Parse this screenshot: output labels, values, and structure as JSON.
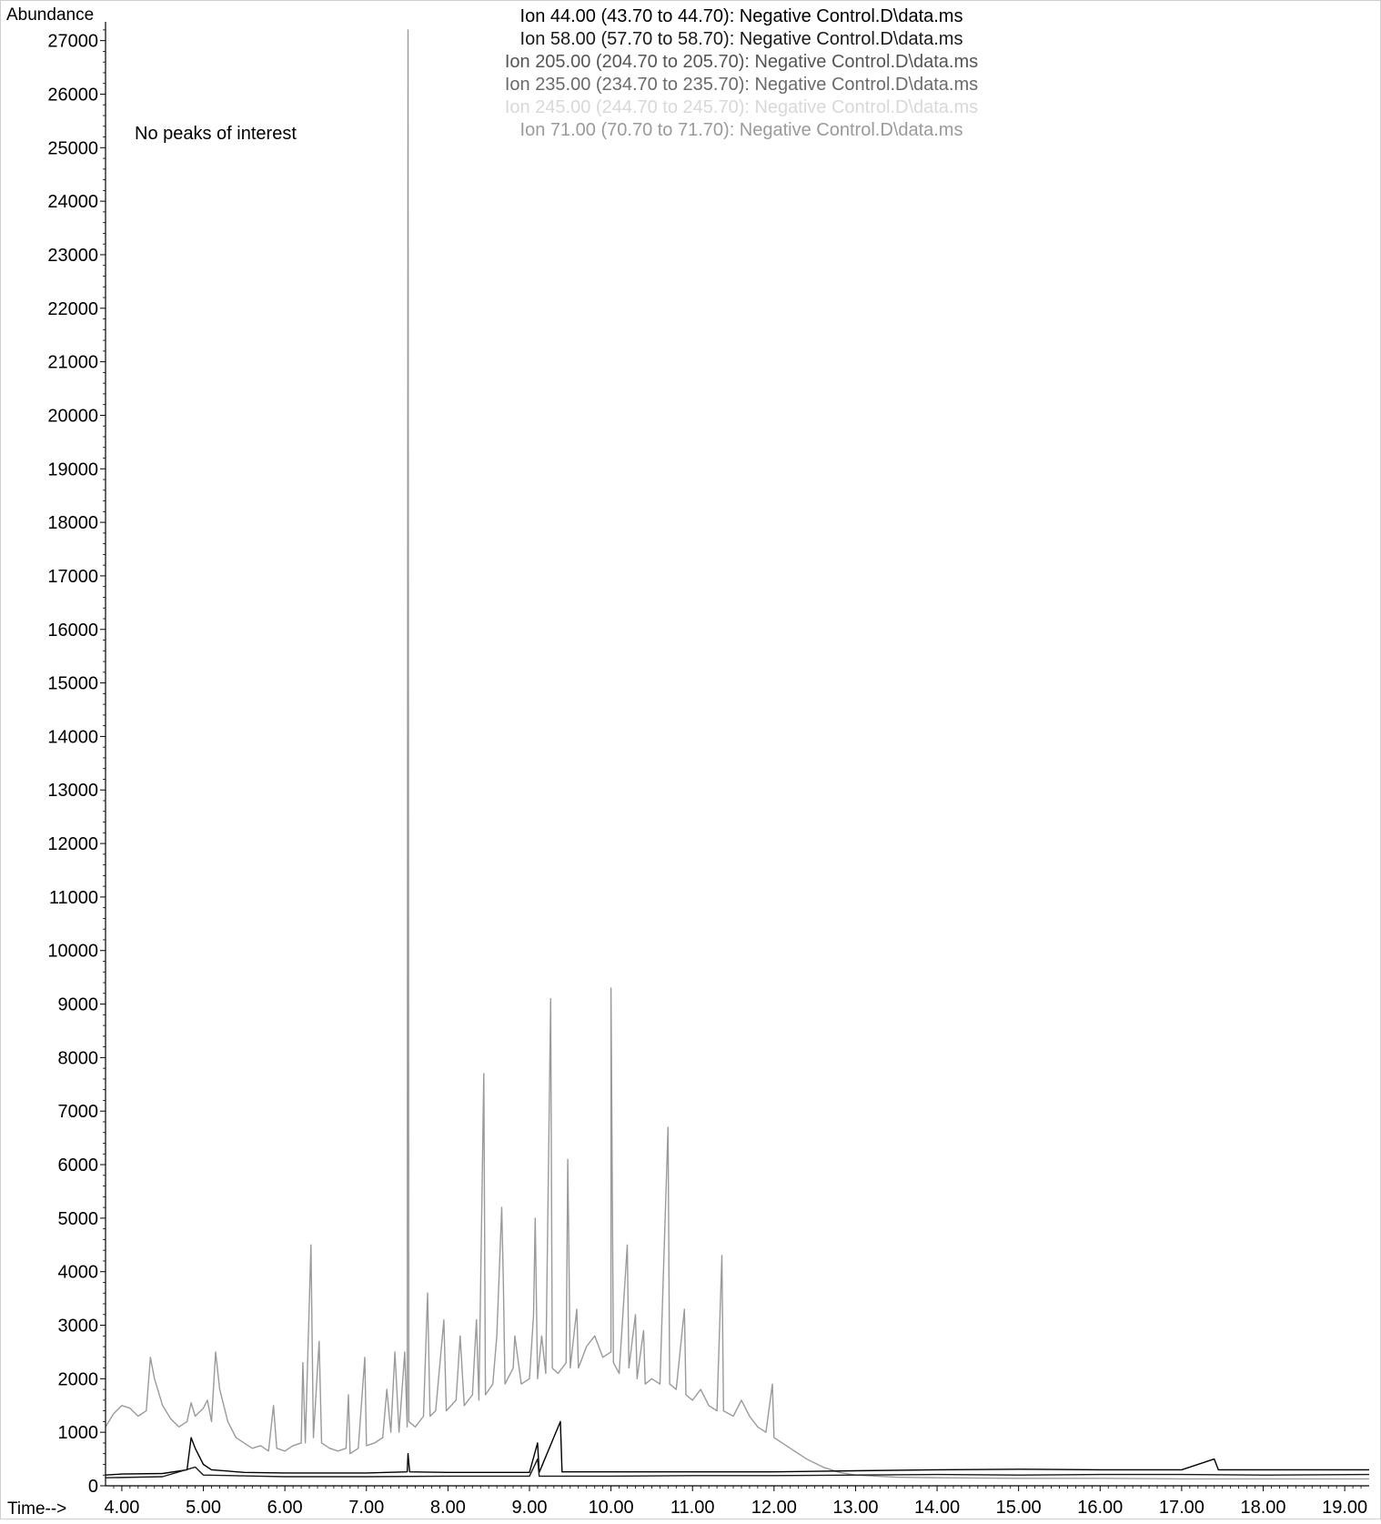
{
  "chart_data": {
    "type": "line",
    "ylabel": "Abundance",
    "xlabel": "Time-->",
    "annotation": "No peaks of interest",
    "xlim": [
      3.8,
      19.3
    ],
    "ylim": [
      0,
      27300
    ],
    "xticks": [
      4,
      5,
      6,
      7,
      8,
      9,
      10,
      11,
      12,
      13,
      14,
      15,
      16,
      17,
      18,
      19
    ],
    "xtick_labels": [
      "4.00",
      "5.00",
      "6.00",
      "7.00",
      "8.00",
      "9.00",
      "10.00",
      "11.00",
      "12.00",
      "13.00",
      "14.00",
      "15.00",
      "16.00",
      "17.00",
      "18.00",
      "19.00"
    ],
    "yticks": [
      0,
      1000,
      2000,
      3000,
      4000,
      5000,
      6000,
      7000,
      8000,
      9000,
      10000,
      11000,
      12000,
      13000,
      14000,
      15000,
      16000,
      17000,
      18000,
      19000,
      20000,
      21000,
      22000,
      23000,
      24000,
      25000,
      26000,
      27000
    ],
    "ytick_labels": [
      "0",
      "1000",
      "2000",
      "3000",
      "4000",
      "5000",
      "6000",
      "7000",
      "8000",
      "9000",
      "10000",
      "11000",
      "12000",
      "13000",
      "14000",
      "15000",
      "16000",
      "17000",
      "18000",
      "19000",
      "20000",
      "21000",
      "22000",
      "23000",
      "24000",
      "25000",
      "26000",
      "27000"
    ],
    "legend": [
      {
        "text": "Ion  44.00 (43.70 to 44.70): Negative Control.D\\data.ms",
        "color": "#000000"
      },
      {
        "text": "Ion  58.00 (57.70 to 58.70): Negative Control.D\\data.ms",
        "color": "#1a1a1a"
      },
      {
        "text": "Ion 205.00 (204.70 to 205.70): Negative Control.D\\data.ms",
        "color": "#555555"
      },
      {
        "text": "Ion 235.00 (234.70 to 235.70): Negative Control.D\\data.ms",
        "color": "#6b6b6b"
      },
      {
        "text": "Ion 245.00 (244.70 to 245.70): Negative Control.D\\data.ms",
        "color": "#d8d8d8"
      },
      {
        "text": "Ion  71.00 (70.70 to 71.70): Negative Control.D\\data.ms",
        "color": "#9a9a9a"
      }
    ],
    "series": [
      {
        "name": "Ion  71.00 (70.70 to 71.70): Negative Control.D\\data.ms",
        "color": "#9a9a9a",
        "points": [
          [
            3.8,
            1100
          ],
          [
            3.9,
            1350
          ],
          [
            4.0,
            1500
          ],
          [
            4.1,
            1450
          ],
          [
            4.2,
            1300
          ],
          [
            4.3,
            1400
          ],
          [
            4.35,
            2400
          ],
          [
            4.4,
            2000
          ],
          [
            4.5,
            1500
          ],
          [
            4.6,
            1250
          ],
          [
            4.7,
            1100
          ],
          [
            4.8,
            1200
          ],
          [
            4.85,
            1550
          ],
          [
            4.9,
            1300
          ],
          [
            5.0,
            1450
          ],
          [
            5.05,
            1600
          ],
          [
            5.1,
            1200
          ],
          [
            5.15,
            2500
          ],
          [
            5.2,
            1800
          ],
          [
            5.3,
            1200
          ],
          [
            5.4,
            900
          ],
          [
            5.5,
            800
          ],
          [
            5.6,
            700
          ],
          [
            5.7,
            750
          ],
          [
            5.8,
            650
          ],
          [
            5.86,
            1500
          ],
          [
            5.9,
            700
          ],
          [
            6.0,
            650
          ],
          [
            6.1,
            750
          ],
          [
            6.2,
            800
          ],
          [
            6.22,
            2300
          ],
          [
            6.25,
            800
          ],
          [
            6.32,
            4500
          ],
          [
            6.35,
            900
          ],
          [
            6.42,
            2700
          ],
          [
            6.45,
            800
          ],
          [
            6.55,
            700
          ],
          [
            6.65,
            650
          ],
          [
            6.75,
            700
          ],
          [
            6.78,
            1700
          ],
          [
            6.8,
            600
          ],
          [
            6.9,
            700
          ],
          [
            6.98,
            2400
          ],
          [
            7.0,
            750
          ],
          [
            7.1,
            800
          ],
          [
            7.2,
            900
          ],
          [
            7.25,
            1800
          ],
          [
            7.3,
            1000
          ],
          [
            7.35,
            2500
          ],
          [
            7.4,
            1000
          ],
          [
            7.47,
            2500
          ],
          [
            7.5,
            1100
          ],
          [
            7.51,
            27200
          ],
          [
            7.52,
            1200
          ],
          [
            7.6,
            1100
          ],
          [
            7.7,
            1300
          ],
          [
            7.75,
            3600
          ],
          [
            7.78,
            1300
          ],
          [
            7.85,
            1400
          ],
          [
            7.95,
            3100
          ],
          [
            7.98,
            1400
          ],
          [
            8.1,
            1600
          ],
          [
            8.15,
            2800
          ],
          [
            8.2,
            1500
          ],
          [
            8.3,
            1700
          ],
          [
            8.35,
            3100
          ],
          [
            8.38,
            1600
          ],
          [
            8.44,
            7700
          ],
          [
            8.46,
            1700
          ],
          [
            8.55,
            1900
          ],
          [
            8.6,
            2800
          ],
          [
            8.66,
            5200
          ],
          [
            8.68,
            3800
          ],
          [
            8.7,
            1900
          ],
          [
            8.8,
            2200
          ],
          [
            8.82,
            2800
          ],
          [
            8.9,
            1900
          ],
          [
            9.0,
            2000
          ],
          [
            9.05,
            3200
          ],
          [
            9.07,
            5000
          ],
          [
            9.1,
            2000
          ],
          [
            9.15,
            2800
          ],
          [
            9.2,
            2100
          ],
          [
            9.26,
            9100
          ],
          [
            9.28,
            2200
          ],
          [
            9.35,
            2100
          ],
          [
            9.45,
            2300
          ],
          [
            9.47,
            6100
          ],
          [
            9.5,
            2200
          ],
          [
            9.58,
            3300
          ],
          [
            9.6,
            2200
          ],
          [
            9.7,
            2600
          ],
          [
            9.8,
            2800
          ],
          [
            9.9,
            2400
          ],
          [
            10.0,
            2500
          ],
          [
            10.0,
            9300
          ],
          [
            10.03,
            2300
          ],
          [
            10.1,
            2100
          ],
          [
            10.2,
            4500
          ],
          [
            10.22,
            2200
          ],
          [
            10.3,
            3200
          ],
          [
            10.32,
            2000
          ],
          [
            10.4,
            2900
          ],
          [
            10.42,
            1900
          ],
          [
            10.5,
            2000
          ],
          [
            10.6,
            1900
          ],
          [
            10.7,
            6700
          ],
          [
            10.72,
            1900
          ],
          [
            10.8,
            1800
          ],
          [
            10.9,
            3300
          ],
          [
            10.92,
            1700
          ],
          [
            11.0,
            1600
          ],
          [
            11.1,
            1800
          ],
          [
            11.2,
            1500
          ],
          [
            11.3,
            1400
          ],
          [
            11.36,
            4300
          ],
          [
            11.38,
            1400
          ],
          [
            11.5,
            1300
          ],
          [
            11.6,
            1600
          ],
          [
            11.7,
            1300
          ],
          [
            11.8,
            1100
          ],
          [
            11.9,
            1000
          ],
          [
            11.98,
            1900
          ],
          [
            12.0,
            900
          ],
          [
            12.2,
            700
          ],
          [
            12.4,
            500
          ],
          [
            12.6,
            350
          ],
          [
            12.8,
            250
          ],
          [
            13.0,
            200
          ],
          [
            13.5,
            160
          ],
          [
            14.0,
            150
          ],
          [
            15.0,
            140
          ],
          [
            16.0,
            140
          ],
          [
            17.0,
            130
          ],
          [
            18.0,
            130
          ],
          [
            19.3,
            130
          ]
        ]
      },
      {
        "name": "Ion  44.00 (43.70 to 44.70): Negative Control.D\\data.ms",
        "color": "#000000",
        "points": [
          [
            3.8,
            200
          ],
          [
            4.0,
            220
          ],
          [
            4.5,
            230
          ],
          [
            4.8,
            300
          ],
          [
            4.85,
            900
          ],
          [
            4.9,
            700
          ],
          [
            5.0,
            400
          ],
          [
            5.1,
            300
          ],
          [
            5.5,
            250
          ],
          [
            6.0,
            240
          ],
          [
            7.0,
            240
          ],
          [
            7.5,
            260
          ],
          [
            7.51,
            600
          ],
          [
            7.53,
            260
          ],
          [
            8.0,
            250
          ],
          [
            9.0,
            250
          ],
          [
            9.1,
            800
          ],
          [
            9.12,
            250
          ],
          [
            9.38,
            1200
          ],
          [
            9.4,
            260
          ],
          [
            10.0,
            260
          ],
          [
            11.0,
            260
          ],
          [
            12.0,
            260
          ],
          [
            13.0,
            280
          ],
          [
            14.0,
            300
          ],
          [
            15.0,
            310
          ],
          [
            16.0,
            300
          ],
          [
            17.0,
            300
          ],
          [
            17.4,
            500
          ],
          [
            17.45,
            300
          ],
          [
            18.0,
            300
          ],
          [
            19.3,
            300
          ]
        ]
      },
      {
        "name": "Ion  58.00 (57.70 to 58.70): Negative Control.D\\data.ms",
        "color": "#1a1a1a",
        "points": [
          [
            3.8,
            150
          ],
          [
            4.5,
            170
          ],
          [
            4.9,
            350
          ],
          [
            5.0,
            200
          ],
          [
            6.0,
            170
          ],
          [
            7.0,
            170
          ],
          [
            8.0,
            180
          ],
          [
            9.0,
            180
          ],
          [
            9.1,
            500
          ],
          [
            9.12,
            180
          ],
          [
            10.0,
            180
          ],
          [
            11.0,
            190
          ],
          [
            12.0,
            190
          ],
          [
            13.0,
            200
          ],
          [
            14.0,
            210
          ],
          [
            15.0,
            200
          ],
          [
            16.0,
            210
          ],
          [
            17.0,
            210
          ],
          [
            18.0,
            200
          ],
          [
            19.3,
            210
          ]
        ]
      }
    ]
  }
}
